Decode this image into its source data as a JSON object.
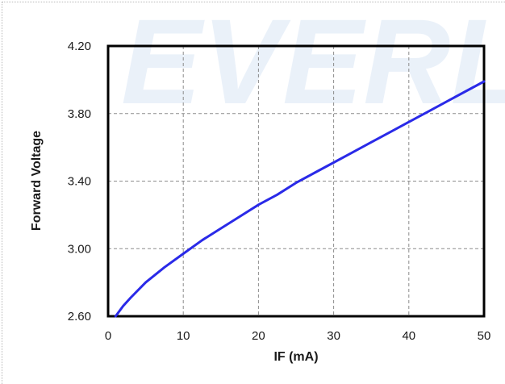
{
  "watermark": {
    "text": "EVERL"
  },
  "chart_data": {
    "type": "line",
    "title": "",
    "xlabel": "IF (mA)",
    "ylabel": "Forward Voltage",
    "xlim": [
      0,
      50
    ],
    "ylim": [
      2.6,
      4.2
    ],
    "x_ticks": [
      "0",
      "10",
      "20",
      "30",
      "40",
      "50"
    ],
    "y_ticks": [
      "2.60",
      "3.00",
      "3.40",
      "3.80",
      "4.20"
    ],
    "grid": true,
    "legend": "none",
    "series": [
      {
        "color": "#2a2ae8",
        "x": [
          1,
          2,
          3,
          5,
          7.5,
          10,
          12.5,
          15,
          17.5,
          20,
          22.5,
          25,
          27.5,
          30,
          32.5,
          35,
          37.5,
          40,
          42.5,
          45,
          47.5,
          50
        ],
        "y": [
          2.6,
          2.66,
          2.71,
          2.8,
          2.89,
          2.97,
          3.05,
          3.12,
          3.19,
          3.26,
          3.32,
          3.39,
          3.45,
          3.51,
          3.57,
          3.63,
          3.69,
          3.75,
          3.81,
          3.87,
          3.93,
          3.99
        ]
      }
    ]
  }
}
